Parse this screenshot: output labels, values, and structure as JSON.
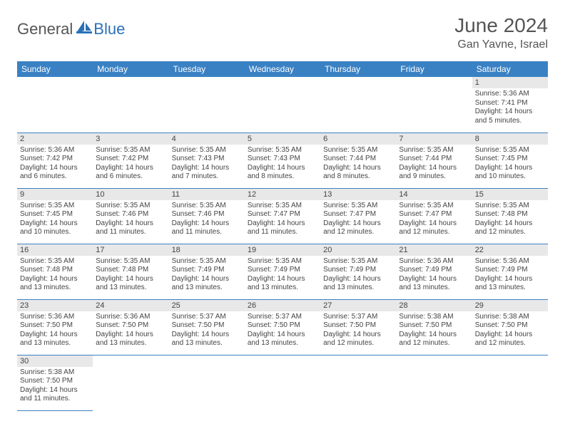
{
  "logo": {
    "part1": "General",
    "part2": "Blue"
  },
  "title": "June 2024",
  "location": "Gan Yavne, Israel",
  "colors": {
    "header_bg": "#3a81c4",
    "header_text": "#ffffff",
    "daynum_bg": "#e8e8e8",
    "text": "#444444",
    "border": "#3a81c4",
    "logo_gray": "#555555",
    "logo_blue": "#2a71b8"
  },
  "weekdays": [
    "Sunday",
    "Monday",
    "Tuesday",
    "Wednesday",
    "Thursday",
    "Friday",
    "Saturday"
  ],
  "weeks": [
    [
      null,
      null,
      null,
      null,
      null,
      null,
      {
        "n": "1",
        "sr": "Sunrise: 5:36 AM",
        "ss": "Sunset: 7:41 PM",
        "dl": "Daylight: 14 hours and 5 minutes."
      }
    ],
    [
      {
        "n": "2",
        "sr": "Sunrise: 5:36 AM",
        "ss": "Sunset: 7:42 PM",
        "dl": "Daylight: 14 hours and 6 minutes."
      },
      {
        "n": "3",
        "sr": "Sunrise: 5:35 AM",
        "ss": "Sunset: 7:42 PM",
        "dl": "Daylight: 14 hours and 6 minutes."
      },
      {
        "n": "4",
        "sr": "Sunrise: 5:35 AM",
        "ss": "Sunset: 7:43 PM",
        "dl": "Daylight: 14 hours and 7 minutes."
      },
      {
        "n": "5",
        "sr": "Sunrise: 5:35 AM",
        "ss": "Sunset: 7:43 PM",
        "dl": "Daylight: 14 hours and 8 minutes."
      },
      {
        "n": "6",
        "sr": "Sunrise: 5:35 AM",
        "ss": "Sunset: 7:44 PM",
        "dl": "Daylight: 14 hours and 8 minutes."
      },
      {
        "n": "7",
        "sr": "Sunrise: 5:35 AM",
        "ss": "Sunset: 7:44 PM",
        "dl": "Daylight: 14 hours and 9 minutes."
      },
      {
        "n": "8",
        "sr": "Sunrise: 5:35 AM",
        "ss": "Sunset: 7:45 PM",
        "dl": "Daylight: 14 hours and 10 minutes."
      }
    ],
    [
      {
        "n": "9",
        "sr": "Sunrise: 5:35 AM",
        "ss": "Sunset: 7:45 PM",
        "dl": "Daylight: 14 hours and 10 minutes."
      },
      {
        "n": "10",
        "sr": "Sunrise: 5:35 AM",
        "ss": "Sunset: 7:46 PM",
        "dl": "Daylight: 14 hours and 11 minutes."
      },
      {
        "n": "11",
        "sr": "Sunrise: 5:35 AM",
        "ss": "Sunset: 7:46 PM",
        "dl": "Daylight: 14 hours and 11 minutes."
      },
      {
        "n": "12",
        "sr": "Sunrise: 5:35 AM",
        "ss": "Sunset: 7:47 PM",
        "dl": "Daylight: 14 hours and 11 minutes."
      },
      {
        "n": "13",
        "sr": "Sunrise: 5:35 AM",
        "ss": "Sunset: 7:47 PM",
        "dl": "Daylight: 14 hours and 12 minutes."
      },
      {
        "n": "14",
        "sr": "Sunrise: 5:35 AM",
        "ss": "Sunset: 7:47 PM",
        "dl": "Daylight: 14 hours and 12 minutes."
      },
      {
        "n": "15",
        "sr": "Sunrise: 5:35 AM",
        "ss": "Sunset: 7:48 PM",
        "dl": "Daylight: 14 hours and 12 minutes."
      }
    ],
    [
      {
        "n": "16",
        "sr": "Sunrise: 5:35 AM",
        "ss": "Sunset: 7:48 PM",
        "dl": "Daylight: 14 hours and 13 minutes."
      },
      {
        "n": "17",
        "sr": "Sunrise: 5:35 AM",
        "ss": "Sunset: 7:48 PM",
        "dl": "Daylight: 14 hours and 13 minutes."
      },
      {
        "n": "18",
        "sr": "Sunrise: 5:35 AM",
        "ss": "Sunset: 7:49 PM",
        "dl": "Daylight: 14 hours and 13 minutes."
      },
      {
        "n": "19",
        "sr": "Sunrise: 5:35 AM",
        "ss": "Sunset: 7:49 PM",
        "dl": "Daylight: 14 hours and 13 minutes."
      },
      {
        "n": "20",
        "sr": "Sunrise: 5:35 AM",
        "ss": "Sunset: 7:49 PM",
        "dl": "Daylight: 14 hours and 13 minutes."
      },
      {
        "n": "21",
        "sr": "Sunrise: 5:36 AM",
        "ss": "Sunset: 7:49 PM",
        "dl": "Daylight: 14 hours and 13 minutes."
      },
      {
        "n": "22",
        "sr": "Sunrise: 5:36 AM",
        "ss": "Sunset: 7:49 PM",
        "dl": "Daylight: 14 hours and 13 minutes."
      }
    ],
    [
      {
        "n": "23",
        "sr": "Sunrise: 5:36 AM",
        "ss": "Sunset: 7:50 PM",
        "dl": "Daylight: 14 hours and 13 minutes."
      },
      {
        "n": "24",
        "sr": "Sunrise: 5:36 AM",
        "ss": "Sunset: 7:50 PM",
        "dl": "Daylight: 14 hours and 13 minutes."
      },
      {
        "n": "25",
        "sr": "Sunrise: 5:37 AM",
        "ss": "Sunset: 7:50 PM",
        "dl": "Daylight: 14 hours and 13 minutes."
      },
      {
        "n": "26",
        "sr": "Sunrise: 5:37 AM",
        "ss": "Sunset: 7:50 PM",
        "dl": "Daylight: 14 hours and 13 minutes."
      },
      {
        "n": "27",
        "sr": "Sunrise: 5:37 AM",
        "ss": "Sunset: 7:50 PM",
        "dl": "Daylight: 14 hours and 12 minutes."
      },
      {
        "n": "28",
        "sr": "Sunrise: 5:38 AM",
        "ss": "Sunset: 7:50 PM",
        "dl": "Daylight: 14 hours and 12 minutes."
      },
      {
        "n": "29",
        "sr": "Sunrise: 5:38 AM",
        "ss": "Sunset: 7:50 PM",
        "dl": "Daylight: 14 hours and 12 minutes."
      }
    ],
    [
      {
        "n": "30",
        "sr": "Sunrise: 5:38 AM",
        "ss": "Sunset: 7:50 PM",
        "dl": "Daylight: 14 hours and 11 minutes."
      },
      null,
      null,
      null,
      null,
      null,
      null
    ]
  ]
}
